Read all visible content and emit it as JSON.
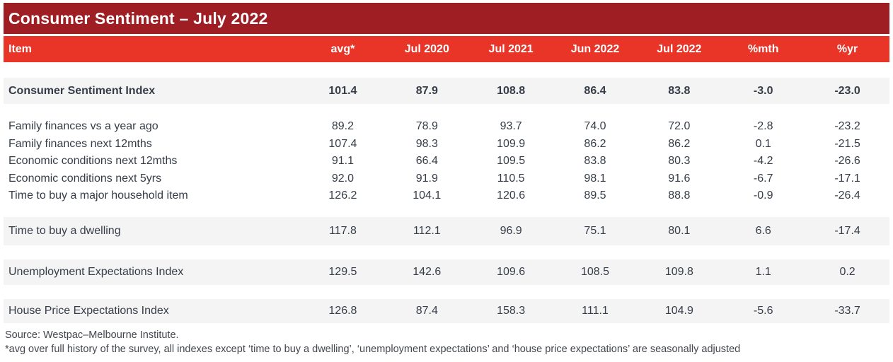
{
  "title": "Consumer Sentiment – July 2022",
  "colors": {
    "title_bar": "#9e1e23",
    "header_bar": "#e93528",
    "row_shaded": "#f4f4f5",
    "text": "#363d48"
  },
  "table": {
    "columns": [
      "Item",
      "avg*",
      "Jul 2020",
      "Jul 2021",
      "Jun 2022",
      "Jul 2022",
      "%mth",
      "%yr"
    ],
    "sections": [
      {
        "rows": [
          {
            "label": "Consumer Sentiment Index",
            "values": [
              "101.4",
              "87.9",
              "108.8",
              "86.4",
              "83.8",
              "-3.0",
              "-23.0"
            ]
          }
        ]
      },
      {
        "rows": [
          {
            "label": "Family finances vs a year ago",
            "values": [
              "89.2",
              "78.9",
              "93.7",
              "74.0",
              "72.0",
              "-2.8",
              "-23.2"
            ]
          },
          {
            "label": "Family finances next 12mths",
            "values": [
              "107.4",
              "98.3",
              "109.9",
              "86.2",
              "86.2",
              "0.1",
              "-21.5"
            ]
          },
          {
            "label": "Economic conditions next 12mths",
            "values": [
              "91.1",
              "66.4",
              "109.5",
              "83.8",
              "80.3",
              "-4.2",
              "-26.6"
            ]
          },
          {
            "label": "Economic conditions next 5yrs",
            "values": [
              "92.0",
              "91.9",
              "110.5",
              "98.1",
              "91.6",
              "-6.7",
              "-17.1"
            ]
          },
          {
            "label": "Time to buy a major household item",
            "values": [
              "126.2",
              "104.1",
              "120.6",
              "89.5",
              "88.8",
              "-0.9",
              "-26.4"
            ]
          }
        ]
      },
      {
        "rows": [
          {
            "label": "Time to buy a dwelling",
            "values": [
              "117.8",
              "112.1",
              "96.9",
              "75.1",
              "80.1",
              "6.6",
              "-17.4"
            ]
          }
        ]
      },
      {
        "rows": [
          {
            "label": "Unemployment Expectations Index",
            "values": [
              "129.5",
              "142.6",
              "109.6",
              "108.5",
              "109.8",
              "1.1",
              "0.2"
            ]
          }
        ]
      },
      {
        "rows": [
          {
            "label": "House Price Expectations Index",
            "values": [
              "126.8",
              "87.4",
              "158.3",
              "111.1",
              "104.9",
              "-5.6",
              "-33.7"
            ]
          }
        ]
      }
    ]
  },
  "footer": {
    "source": "Source: Westpac–Melbourne Institute.",
    "note": "*avg over full history of the survey, all indexes except ‘time to buy a dwelling’, ‘unemployment expectations’ and ‘house price expectations’ are seasonally adjusted"
  },
  "chart_data": {
    "type": "table",
    "title": "Consumer Sentiment – July 2022",
    "columns": [
      "Item",
      "avg*",
      "Jul 2020",
      "Jul 2021",
      "Jun 2022",
      "Jul 2022",
      "%mth",
      "%yr"
    ],
    "rows": [
      [
        "Consumer Sentiment Index",
        101.4,
        87.9,
        108.8,
        86.4,
        83.8,
        -3.0,
        -23.0
      ],
      [
        "Family finances vs a year ago",
        89.2,
        78.9,
        93.7,
        74.0,
        72.0,
        -2.8,
        -23.2
      ],
      [
        "Family finances next 12mths",
        107.4,
        98.3,
        109.9,
        86.2,
        86.2,
        0.1,
        -21.5
      ],
      [
        "Economic conditions next 12mths",
        91.1,
        66.4,
        109.5,
        83.8,
        80.3,
        -4.2,
        -26.6
      ],
      [
        "Economic conditions next 5yrs",
        92.0,
        91.9,
        110.5,
        98.1,
        91.6,
        -6.7,
        -17.1
      ],
      [
        "Time to buy a major household item",
        126.2,
        104.1,
        120.6,
        89.5,
        88.8,
        -0.9,
        -26.4
      ],
      [
        "Time to buy a dwelling",
        117.8,
        112.1,
        96.9,
        75.1,
        80.1,
        6.6,
        -17.4
      ],
      [
        "Unemployment Expectations Index",
        129.5,
        142.6,
        109.6,
        108.5,
        109.8,
        1.1,
        0.2
      ],
      [
        "House Price Expectations Index",
        126.8,
        87.4,
        158.3,
        111.1,
        104.9,
        -5.6,
        -33.7
      ]
    ],
    "source": "Source: Westpac–Melbourne Institute.",
    "footnote": "*avg over full history of the survey, all indexes except ‘time to buy a dwelling’, ‘unemployment expectations’ and ‘house price expectations’ are seasonally adjusted"
  }
}
